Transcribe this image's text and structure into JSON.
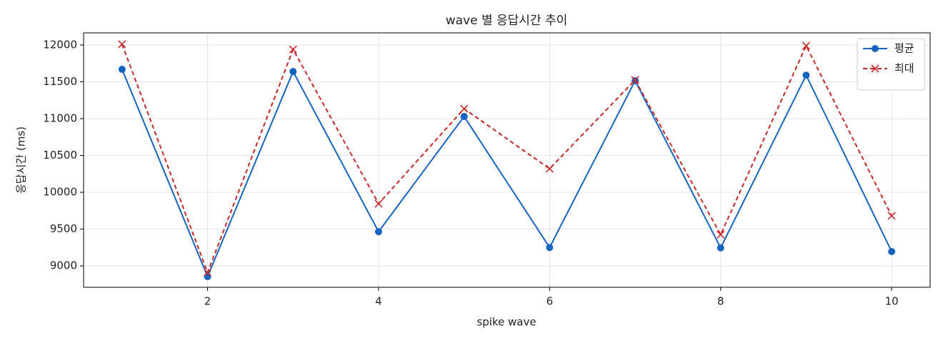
{
  "chart_data": {
    "type": "line",
    "title": "wave 별 응답시간 추이",
    "xlabel": "spike wave",
    "ylabel": "응답시간 (ms)",
    "x": [
      1,
      2,
      3,
      4,
      5,
      6,
      7,
      8,
      9,
      10
    ],
    "series": [
      {
        "name": "평균",
        "color": "#1565c0",
        "linestyle": "solid",
        "marker": "circle",
        "values": [
          11670,
          8855,
          11640,
          9465,
          11030,
          9250,
          11515,
          9245,
          11590,
          9195
        ]
      },
      {
        "name": "최대",
        "color": "#c62828",
        "linestyle": "dashed",
        "marker": "x",
        "values": [
          12010,
          8910,
          11940,
          9845,
          11135,
          10320,
          11525,
          9425,
          11990,
          9680
        ]
      }
    ],
    "xlim": [
      0.55,
      10.45
    ],
    "xticks": [
      2,
      4,
      6,
      8,
      10
    ],
    "ylim": [
      8710,
      12165
    ],
    "yticks": [
      9000,
      9500,
      10000,
      10500,
      11000,
      11500,
      12000
    ],
    "grid": true,
    "legend": "upper right"
  }
}
